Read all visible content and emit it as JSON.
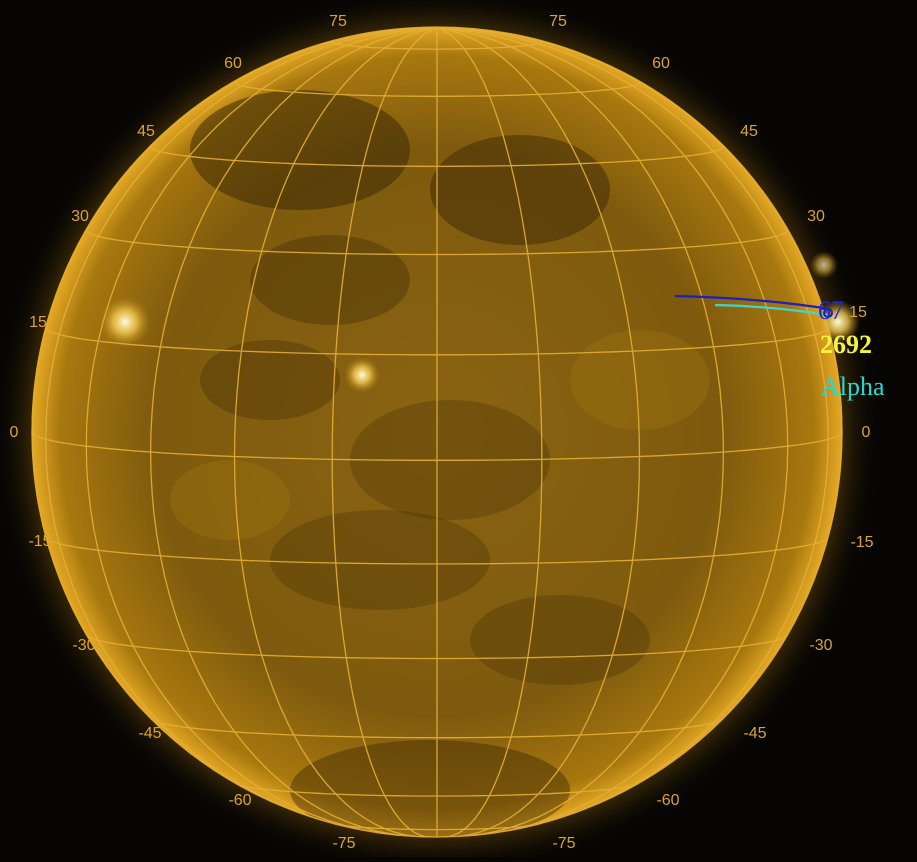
{
  "image": {
    "subject": "solar disk with heliographic grid overlay",
    "disk_color": "#b07d0a",
    "grid_color": "#e6b035",
    "background_color": "#060503"
  },
  "grid_labels": {
    "top": [
      "75",
      "75"
    ],
    "upper": [
      "60",
      "60"
    ],
    "upper_mid": [
      "45",
      "45"
    ],
    "mid_upper": [
      "30",
      "30"
    ],
    "mid": [
      "15",
      "15"
    ],
    "equator": [
      "0",
      "0"
    ],
    "mid_lower": [
      "-15",
      "-15"
    ],
    "lower_mid": [
      "-30",
      "-30"
    ],
    "lower": [
      "-45",
      "-45"
    ],
    "lower_low": [
      "-60",
      "-60"
    ],
    "bottom": [
      "-75",
      "-75"
    ]
  },
  "region_annotation": {
    "number_label": "67",
    "noaa_label": "2692",
    "class_label": "Alpha",
    "number_color": "#1f2bd0",
    "noaa_color": "#f4f43c",
    "class_color": "#28d9d2",
    "track_colors": [
      "#1b1ec0",
      "#3ed6c8"
    ]
  }
}
